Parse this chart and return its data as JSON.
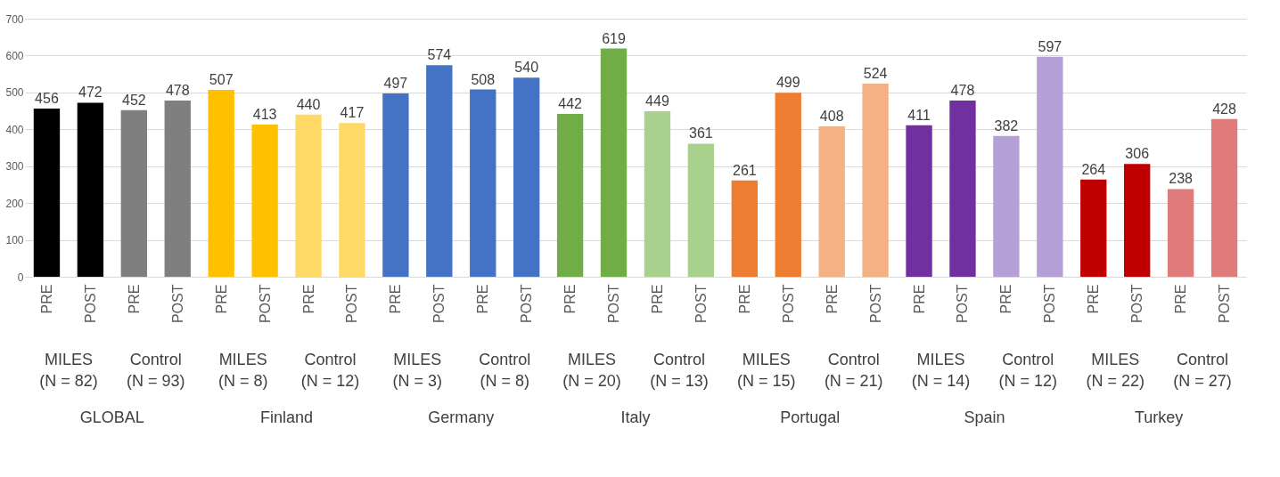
{
  "chart_data": {
    "type": "bar",
    "categories": [
      "PRE",
      "POST",
      "PRE",
      "POST",
      "PRE",
      "POST",
      "PRE",
      "POST",
      "PRE",
      "POST",
      "PRE",
      "POST",
      "PRE",
      "POST",
      "PRE",
      "POST",
      "PRE",
      "POST",
      "PRE",
      "POST",
      "PRE",
      "POST",
      "PRE",
      "POST",
      "PRE",
      "POST",
      "PRE",
      "POST"
    ],
    "values": [
      456,
      472,
      452,
      478,
      507,
      413,
      440,
      417,
      497,
      574,
      508,
      540,
      442,
      619,
      449,
      361,
      261,
      499,
      408,
      524,
      411,
      478,
      382,
      597,
      264,
      306,
      238,
      428
    ],
    "colors": [
      "#000000",
      "#000000",
      "#7f7f7f",
      "#7f7f7f",
      "#ffc000",
      "#ffc000",
      "#ffd966",
      "#ffd966",
      "#4472c4",
      "#4472c4",
      "#4472c4",
      "#4472c4",
      "#70ad47",
      "#70ad47",
      "#a9d18e",
      "#a9d18e",
      "#ed7d31",
      "#ed7d31",
      "#f4b183",
      "#f4b183",
      "#7030a0",
      "#7030a0",
      "#b4a0d6",
      "#b4a0d6",
      "#c00000",
      "#c00000",
      "#e07b7b",
      "#e07b7b"
    ],
    "annotations": [
      "MILES\n(N = 82)",
      "Control\n(N = 93)",
      "MILES\n(N = 8)",
      "Control\n(N = 12)",
      "MILES\n(N = 3)",
      "Control\n(N = 8)",
      "MILES\n(N = 20)",
      "Control\n(N = 13)",
      "MILES\n(N = 15)",
      "Control\n(N = 21)",
      "MILES\n(N = 14)",
      "Control\n(N = 12)",
      "MILES\n(N = 22)",
      "Control\n(N = 27)",
      "GLOBAL",
      "Finland",
      "Germany",
      "Italy",
      "Portugal",
      "Spain",
      "Turkey"
    ],
    "ylim": [
      0,
      700
    ],
    "yticks": [
      0,
      100,
      200,
      300,
      400,
      500,
      600,
      700
    ],
    "grid": "y",
    "data_labels": true
  }
}
